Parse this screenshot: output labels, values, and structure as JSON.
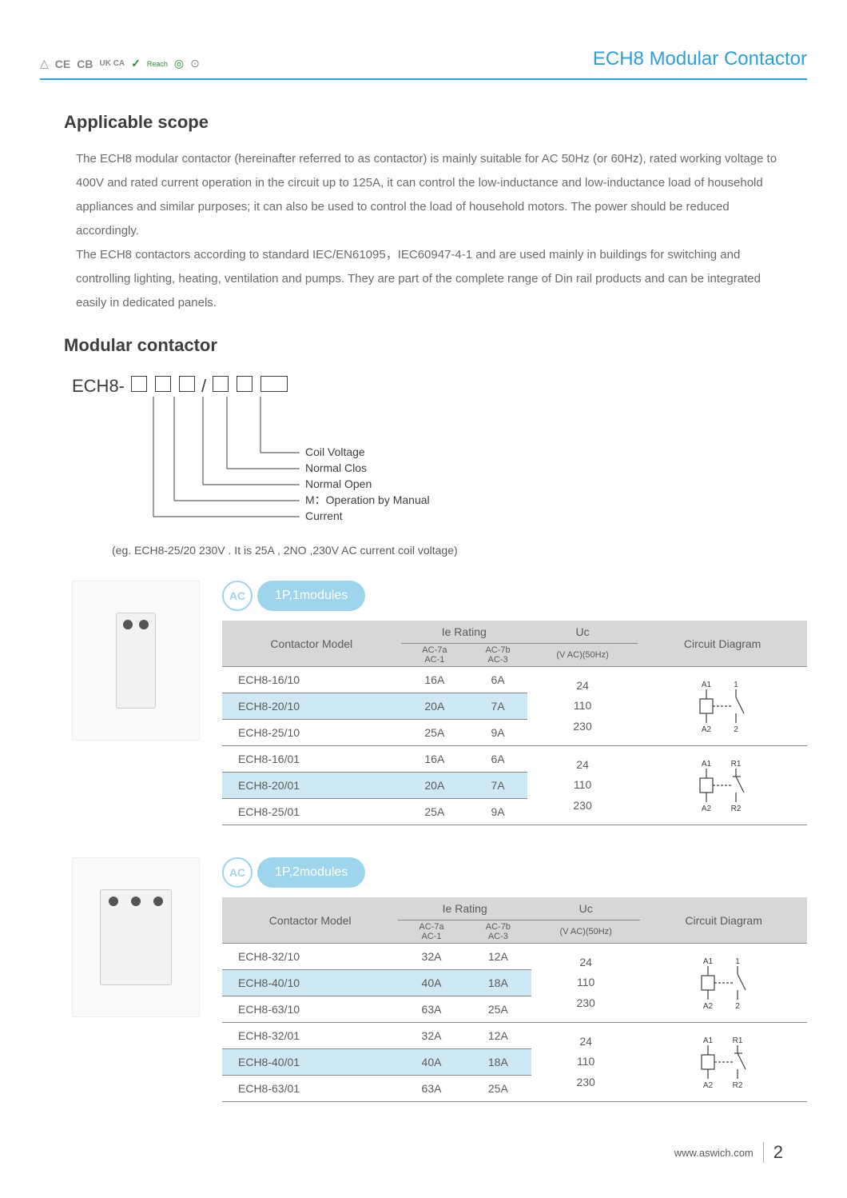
{
  "header": {
    "certs": [
      "△",
      "CE",
      "CB",
      "UK CA",
      "✓",
      "Reach",
      "◎",
      "⊙"
    ],
    "title": "ECH8 Modular Contactor"
  },
  "scope": {
    "heading": "Applicable scope",
    "p1": "The ECH8 modular contactor (hereinafter referred to as contactor) is mainly suitable for AC 50Hz (or 60Hz), rated working voltage to 400V and rated current operation in the circuit up to 125A, it can control the low-inductance and low-inductance load of household appliances and similar purposes; it can also be used to control the load of household motors. The power should be reduced accordingly.",
    "p2": "The ECH8 contactors according to standard IEC/EN61095，IEC60947-4-1 and are used mainly in buildings for switching and controlling lighting, heating, ventilation and pumps. They are part of the complete range of Din rail products and can be integrated easily in dedicated panels."
  },
  "modular": {
    "heading": "Modular contactor",
    "code_prefix": "ECH8-",
    "code_separator": "/",
    "labels": {
      "coil": "Coil Voltage",
      "nc": "Normal Clos",
      "no": "Normal Open",
      "manual": "M：Operation by Manual",
      "current": "Current"
    },
    "example": "(eg. ECH8-25/20 230V . It is 25A , 2NO ,230V AC current coil voltage)"
  },
  "table_headers": {
    "model": "Contactor Model",
    "ie": "Ie Rating",
    "ie_sub1": "AC-7a\nAC-1",
    "ie_sub2": "AC-7b\nAC-3",
    "uc": "Uc",
    "uc_sub": "(V AC)(50Hz)",
    "circuit": "Circuit Diagram"
  },
  "section1": {
    "tag_circle": "AC",
    "tag_pill": "1P,1modules",
    "uc_values": [
      "24",
      "110",
      "230"
    ],
    "rows_a": [
      {
        "model": "ECH8-16/10",
        "r1": "16A",
        "r2": "6A"
      },
      {
        "model": "ECH8-20/10",
        "r1": "20A",
        "r2": "7A"
      },
      {
        "model": "ECH8-25/10",
        "r1": "25A",
        "r2": "9A"
      }
    ],
    "rows_b": [
      {
        "model": "ECH8-16/01",
        "r1": "16A",
        "r2": "6A"
      },
      {
        "model": "ECH8-20/01",
        "r1": "20A",
        "r2": "7A"
      },
      {
        "model": "ECH8-25/01",
        "r1": "25A",
        "r2": "9A"
      }
    ],
    "circuit_a": {
      "tl": "A1",
      "tr": "1",
      "bl": "A2",
      "br": "2",
      "nc": false
    },
    "circuit_b": {
      "tl": "A1",
      "tr": "R1",
      "bl": "A2",
      "br": "R2",
      "nc": true
    }
  },
  "section2": {
    "tag_circle": "AC",
    "tag_pill": "1P,2modules",
    "uc_values": [
      "24",
      "110",
      "230"
    ],
    "rows_a": [
      {
        "model": "ECH8-32/10",
        "r1": "32A",
        "r2": "12A"
      },
      {
        "model": "ECH8-40/10",
        "r1": "40A",
        "r2": "18A"
      },
      {
        "model": "ECH8-63/10",
        "r1": "63A",
        "r2": "25A"
      }
    ],
    "rows_b": [
      {
        "model": "ECH8-32/01",
        "r1": "32A",
        "r2": "12A"
      },
      {
        "model": "ECH8-40/01",
        "r1": "40A",
        "r2": "18A"
      },
      {
        "model": "ECH8-63/01",
        "r1": "63A",
        "r2": "25A"
      }
    ],
    "circuit_a": {
      "tl": "A1",
      "tr": "1",
      "bl": "A2",
      "br": "2",
      "nc": false
    },
    "circuit_b": {
      "tl": "A1",
      "tr": "R1",
      "bl": "A2",
      "br": "R2",
      "nc": true
    }
  },
  "footer": {
    "url": "www.aswich.com",
    "page": "2"
  },
  "colors": {
    "accent": "#2d9fd8",
    "pill": "#9fd4ed",
    "row_alt": "#cfe9f4",
    "header_bg": "#d6d7d8"
  }
}
